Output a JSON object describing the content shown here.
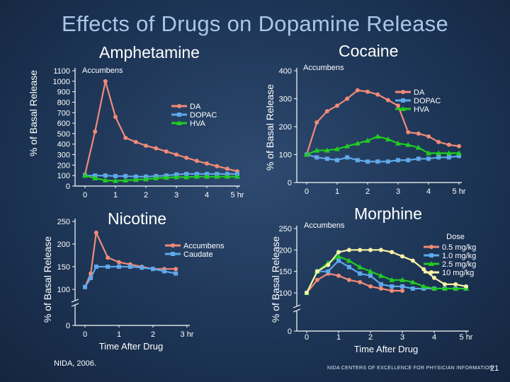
{
  "slide": {
    "title": "Effects of Drugs on Dopamine Release",
    "source": "NIDA, 2006.",
    "footer": "NIDA CENTERS OF EXCELLENCE FOR PHYSICIAN INFORMATION",
    "page": "21"
  },
  "colors": {
    "red": "#f28a78",
    "blue": "#5fa9ea",
    "green": "#22cc22",
    "yellow": "#f7f3a6"
  },
  "chart_data": [
    {
      "type": "line",
      "title": "Amphetamine",
      "subtitle": "Accumbens",
      "ylabel": "% of Basal Release",
      "xlabel": "",
      "ylim": [
        0,
        1100
      ],
      "yticks": [
        0,
        100,
        200,
        300,
        400,
        500,
        600,
        700,
        800,
        900,
        1000,
        1100
      ],
      "xlim": [
        0,
        5
      ],
      "xticks": [
        "0",
        "1",
        "2",
        "3",
        "4",
        "5 hr"
      ],
      "legend": "right",
      "series": [
        {
          "name": "DA",
          "color": "#f28a78",
          "marker": "circle",
          "x": [
            0,
            0.33,
            0.67,
            1.0,
            1.33,
            1.67,
            2.0,
            2.33,
            2.67,
            3.0,
            3.33,
            3.67,
            4.0,
            4.33,
            4.67,
            5.0
          ],
          "y": [
            110,
            520,
            1000,
            660,
            460,
            420,
            385,
            360,
            330,
            300,
            270,
            240,
            215,
            190,
            165,
            140
          ]
        },
        {
          "name": "DOPAC",
          "color": "#5fa9ea",
          "marker": "square",
          "x": [
            0,
            0.33,
            0.67,
            1.0,
            1.33,
            1.67,
            2.0,
            2.33,
            2.67,
            3.0,
            3.33,
            3.67,
            4.0,
            4.33,
            4.67,
            5.0
          ],
          "y": [
            100,
            100,
            100,
            95,
            95,
            90,
            90,
            95,
            100,
            110,
            115,
            115,
            115,
            115,
            115,
            115
          ]
        },
        {
          "name": "HVA",
          "color": "#22cc22",
          "marker": "triangle",
          "x": [
            0,
            0.33,
            0.67,
            1.0,
            1.33,
            1.67,
            2.0,
            2.33,
            2.67,
            3.0,
            3.33,
            3.67,
            4.0,
            4.33,
            4.67,
            5.0
          ],
          "y": [
            100,
            75,
            55,
            50,
            55,
            60,
            65,
            75,
            80,
            85,
            85,
            90,
            90,
            90,
            90,
            90
          ]
        }
      ]
    },
    {
      "type": "line",
      "title": "Cocaine",
      "subtitle": "Accumbens",
      "ylabel": "% of Basal Release",
      "xlabel": "",
      "ylim": [
        0,
        400
      ],
      "yticks": [
        0,
        100,
        200,
        300,
        400
      ],
      "xlim": [
        0,
        5
      ],
      "xticks": [
        "0",
        "1",
        "2",
        "3",
        "4",
        "5 hr"
      ],
      "legend": "top-right",
      "series": [
        {
          "name": "DA",
          "color": "#f28a78",
          "marker": "circle",
          "x": [
            0,
            0.33,
            0.67,
            1.0,
            1.33,
            1.67,
            2.0,
            2.33,
            2.67,
            3.0,
            3.33,
            3.67,
            4.0,
            4.33,
            4.67,
            5.0
          ],
          "y": [
            100,
            215,
            255,
            275,
            300,
            330,
            325,
            315,
            295,
            275,
            180,
            175,
            165,
            145,
            135,
            130
          ]
        },
        {
          "name": "DOPAC",
          "color": "#5fa9ea",
          "marker": "square",
          "x": [
            0,
            0.33,
            0.67,
            1.0,
            1.33,
            1.67,
            2.0,
            2.33,
            2.67,
            3.0,
            3.33,
            3.67,
            4.0,
            4.33,
            4.67,
            5.0
          ],
          "y": [
            100,
            90,
            85,
            80,
            90,
            80,
            75,
            75,
            75,
            80,
            80,
            85,
            85,
            90,
            90,
            95
          ]
        },
        {
          "name": "HVA",
          "color": "#22cc22",
          "marker": "triangle",
          "x": [
            0,
            0.33,
            0.67,
            1.0,
            1.33,
            1.67,
            2.0,
            2.33,
            2.67,
            3.0,
            3.33,
            3.67,
            4.0,
            4.33,
            4.67,
            5.0
          ],
          "y": [
            100,
            115,
            115,
            120,
            130,
            140,
            150,
            165,
            155,
            140,
            135,
            125,
            105,
            105,
            105,
            105
          ]
        }
      ]
    },
    {
      "type": "line",
      "title": "Nicotine",
      "subtitle": "",
      "ylabel": "% of Basal Release",
      "xlabel": "Time After Drug",
      "axis_break": true,
      "ylim": [
        0,
        250
      ],
      "yticks": [
        0,
        100,
        150,
        200,
        250
      ],
      "xlim": [
        0,
        3
      ],
      "xticks": [
        "0",
        "1",
        "2",
        "3 hr"
      ],
      "legend": "right",
      "series": [
        {
          "name": "Accumbens",
          "color": "#f28a78",
          "marker": "circle",
          "x": [
            0,
            0.17,
            0.33,
            0.67,
            1.0,
            1.33,
            1.67,
            2.0,
            2.33,
            2.67
          ],
          "y": [
            105,
            135,
            225,
            170,
            160,
            155,
            150,
            145,
            145,
            145
          ]
        },
        {
          "name": "Caudate",
          "color": "#5fa9ea",
          "marker": "square",
          "x": [
            0,
            0.17,
            0.33,
            0.67,
            1.0,
            1.33,
            1.67,
            2.0,
            2.33,
            2.67
          ],
          "y": [
            105,
            125,
            150,
            150,
            150,
            150,
            148,
            145,
            140,
            135
          ]
        }
      ]
    },
    {
      "type": "line",
      "title": "Morphine",
      "subtitle": "Accumbens",
      "ylabel": "% of Basal Release",
      "xlabel": "Time After Drug",
      "axis_break": true,
      "ylim": [
        0,
        250
      ],
      "yticks": [
        0,
        100,
        150,
        200,
        250
      ],
      "xlim": [
        0,
        5
      ],
      "xticks": [
        "0",
        "1",
        "2",
        "3",
        "4",
        "5 hr"
      ],
      "legend": "top-right",
      "legend_title": "Dose",
      "series": [
        {
          "name": "0.5 mg/kg",
          "color": "#f28a78",
          "marker": "circle",
          "x": [
            0,
            0.33,
            0.67,
            1.0,
            1.33,
            1.67,
            2.0,
            2.33,
            2.67,
            3.0
          ],
          "y": [
            100,
            130,
            145,
            140,
            130,
            125,
            115,
            110,
            105,
            105
          ]
        },
        {
          "name": "1.0 mg/kg",
          "color": "#5fa9ea",
          "marker": "square",
          "x": [
            0,
            0.33,
            0.67,
            1.0,
            1.33,
            1.67,
            2.0,
            2.33,
            2.67,
            3.0,
            3.33,
            3.67,
            4.0,
            4.33,
            4.67,
            5.0
          ],
          "y": [
            100,
            150,
            150,
            175,
            160,
            145,
            140,
            120,
            115,
            115,
            110,
            110,
            110,
            110,
            110,
            110
          ]
        },
        {
          "name": "2.5 mg/kg",
          "color": "#22cc22",
          "marker": "triangle",
          "x": [
            0,
            0.33,
            0.67,
            1.0,
            1.33,
            1.67,
            2.0,
            2.33,
            2.67,
            3.0,
            3.33,
            3.67,
            4.0,
            4.33,
            4.67,
            5.0
          ],
          "y": [
            100,
            150,
            170,
            185,
            175,
            160,
            150,
            140,
            130,
            130,
            125,
            115,
            110,
            110,
            110,
            110
          ]
        },
        {
          "name": "10 mg/kg",
          "color": "#f7f3a6",
          "marker": "circle",
          "x": [
            0,
            0.33,
            0.67,
            1.0,
            1.33,
            1.67,
            2.0,
            2.33,
            2.67,
            3.0,
            3.33,
            3.67,
            4.0,
            4.33,
            4.67,
            5.0
          ],
          "y": [
            100,
            150,
            165,
            195,
            200,
            200,
            200,
            200,
            195,
            185,
            175,
            155,
            135,
            120,
            120,
            115
          ]
        }
      ]
    }
  ]
}
